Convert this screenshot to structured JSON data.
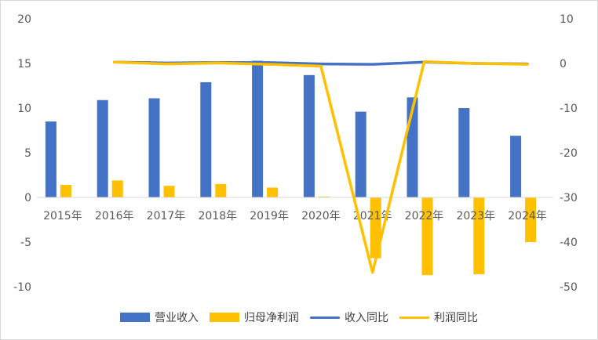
{
  "chart_data": {
    "type": "bar",
    "categories": [
      "2015年",
      "2016年",
      "2017年",
      "2018年",
      "2019年",
      "2020年",
      "2021年",
      "2022年",
      "2023年",
      "2024年"
    ],
    "series": [
      {
        "name": "营业收入",
        "type": "bar",
        "axis": "left",
        "color": "#4472C4",
        "values": [
          8.5,
          10.9,
          11.1,
          12.9,
          15.3,
          13.7,
          9.6,
          11.2,
          10.0,
          6.9
        ]
      },
      {
        "name": "归母净利润",
        "type": "bar",
        "axis": "left",
        "color": "#FFC000",
        "values": [
          1.4,
          1.9,
          1.3,
          1.5,
          1.1,
          0.1,
          -6.8,
          -8.7,
          -8.6,
          -5.0
        ]
      },
      {
        "name": "收入同比",
        "type": "line",
        "axis": "right",
        "color": "#4472C4",
        "values": [
          null,
          0.3,
          0.1,
          0.2,
          0.2,
          -0.1,
          -0.2,
          0.3,
          0.0,
          -0.1
        ]
      },
      {
        "name": "利润同比",
        "type": "line",
        "axis": "right",
        "color": "#FFC000",
        "values": [
          null,
          0.3,
          -0.1,
          0.1,
          -0.2,
          -0.6,
          -46.8,
          0.4,
          0.0,
          -0.2
        ]
      }
    ],
    "left_axis": {
      "min": -10,
      "max": 20,
      "ticks": [
        -10,
        -5,
        0,
        5,
        10,
        15,
        20
      ]
    },
    "right_axis": {
      "min": -50,
      "max": 10,
      "ticks": [
        -50,
        -40,
        -30,
        -20,
        -10,
        0,
        10
      ]
    },
    "grid": false,
    "legend_position": "bottom"
  }
}
